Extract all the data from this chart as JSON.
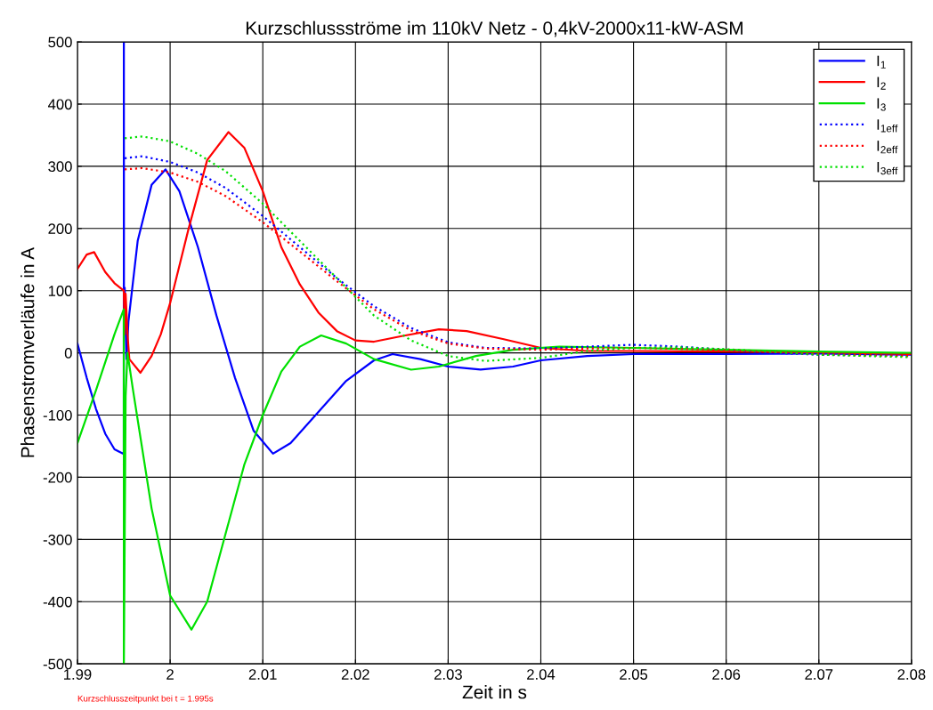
{
  "chart_data": {
    "type": "line",
    "title": "Kurzschlussströme im 110kV Netz - 0,4kV-2000x11-kW-ASM",
    "xlabel": "Zeit in s",
    "ylabel": "Phasenstromverläufe in A",
    "annotations": [
      "Kurzschlusszeitpunkt bei t = 1.995s"
    ],
    "xlim": [
      1.99,
      2.08
    ],
    "xticks": [
      1.99,
      2,
      2.01,
      2.02,
      2.03,
      2.04,
      2.05,
      2.06,
      2.07,
      2.08
    ],
    "ylim": [
      -500,
      500
    ],
    "yticks": [
      -500,
      -400,
      -300,
      -200,
      -100,
      0,
      100,
      200,
      300,
      400,
      500
    ],
    "grid": true,
    "legend": "top right",
    "series": [
      {
        "name": "I$_{1}$",
        "color": "#0000ff",
        "line_style": "solid",
        "x": [
          1.99,
          1.991,
          1.992,
          1.993,
          1.994,
          1.9949,
          1.995,
          1.99501,
          1.99502,
          1.9951,
          1.9953,
          1.9955,
          1.9965,
          1.998,
          1.9995,
          2.001,
          2.003,
          2.005,
          2.007,
          2.009,
          2.0111,
          2.013,
          2.016,
          2.019,
          2.022,
          2.024,
          2.027,
          2.03,
          2.0335,
          2.037,
          2.04,
          2.045,
          2.05,
          2.06,
          2.07,
          2.08
        ],
        "values": [
          15,
          -40,
          -90,
          -130,
          -155,
          -162,
          -160,
          500,
          100,
          105,
          -10,
          50,
          180,
          270,
          295,
          260,
          170,
          60,
          -40,
          -125,
          -162,
          -145,
          -95,
          -45,
          -12,
          -2,
          -10,
          -22,
          -27,
          -22,
          -12,
          -5,
          -2,
          -2,
          -1,
          -3
        ]
      },
      {
        "name": "I$_{2}$",
        "color": "#ff0000",
        "line_style": "solid",
        "x": [
          1.99,
          1.991,
          1.9918,
          1.993,
          1.994,
          1.995,
          1.9951,
          1.9952,
          1.9954,
          1.9956,
          1.9968,
          1.998,
          1.999,
          2.0,
          2.002,
          2.004,
          2.0063,
          2.008,
          2.01,
          2.012,
          2.014,
          2.016,
          2.018,
          2.02,
          2.022,
          2.025,
          2.029,
          2.032,
          2.036,
          2.04,
          2.045,
          2.05,
          2.06,
          2.07,
          2.08
        ],
        "values": [
          135,
          158,
          162,
          130,
          112,
          100,
          30,
          95,
          30,
          -10,
          -32,
          -5,
          30,
          80,
          200,
          310,
          355,
          330,
          260,
          170,
          110,
          65,
          35,
          20,
          18,
          27,
          38,
          35,
          22,
          8,
          3,
          3,
          2,
          1,
          -2
        ]
      },
      {
        "name": "I$_{3}$",
        "color": "#00e000",
        "line_style": "solid",
        "x": [
          1.99,
          1.992,
          1.994,
          1.995,
          1.99501,
          1.9952,
          1.9954,
          1.996,
          1.998,
          2.0,
          2.0023,
          2.004,
          2.006,
          2.008,
          2.01,
          2.012,
          2.014,
          2.0163,
          2.019,
          2.022,
          2.026,
          2.029,
          2.033,
          2.037,
          2.042,
          2.05,
          2.06,
          2.07,
          2.08
        ],
        "values": [
          -145,
          -60,
          30,
          70,
          -500,
          -70,
          0,
          -60,
          -250,
          -390,
          -445,
          -400,
          -290,
          -180,
          -100,
          -30,
          10,
          28,
          15,
          -10,
          -27,
          -22,
          -5,
          5,
          10,
          8,
          5,
          2,
          0
        ]
      },
      {
        "name": "I$_{1eff}$",
        "color": "#0000ff",
        "line_style": "dotted",
        "x": [
          1.9951,
          1.997,
          2.0,
          2.003,
          2.006,
          2.01,
          2.014,
          2.018,
          2.022,
          2.026,
          2.03,
          2.034,
          2.04,
          2.045,
          2.05,
          2.055,
          2.06,
          2.065,
          2.07,
          2.08
        ],
        "values": [
          313,
          316,
          307,
          290,
          265,
          220,
          170,
          120,
          75,
          40,
          17,
          8,
          7,
          10,
          13,
          10,
          5,
          0,
          -3,
          -5
        ]
      },
      {
        "name": "I$_{2eff}$",
        "color": "#ff0000",
        "line_style": "dotted",
        "x": [
          1.9951,
          1.997,
          2.0,
          2.003,
          2.006,
          2.01,
          2.014,
          2.018,
          2.022,
          2.026,
          2.03,
          2.034,
          2.04,
          2.045,
          2.05,
          2.06,
          2.07,
          2.08
        ],
        "values": [
          295,
          297,
          290,
          275,
          252,
          210,
          163,
          115,
          70,
          36,
          15,
          7,
          5,
          7,
          8,
          5,
          -2,
          -5
        ]
      },
      {
        "name": "I$_{3eff}$",
        "color": "#00e000",
        "line_style": "dotted",
        "x": [
          1.9951,
          1.997,
          2.0,
          2.003,
          2.006,
          2.01,
          2.014,
          2.018,
          2.022,
          2.026,
          2.03,
          2.034,
          2.04,
          2.045,
          2.05,
          2.055,
          2.06,
          2.07,
          2.08
        ],
        "values": [
          345,
          348,
          340,
          320,
          292,
          240,
          180,
          120,
          60,
          20,
          -5,
          -13,
          -8,
          3,
          8,
          9,
          6,
          -3,
          -7
        ]
      }
    ]
  }
}
